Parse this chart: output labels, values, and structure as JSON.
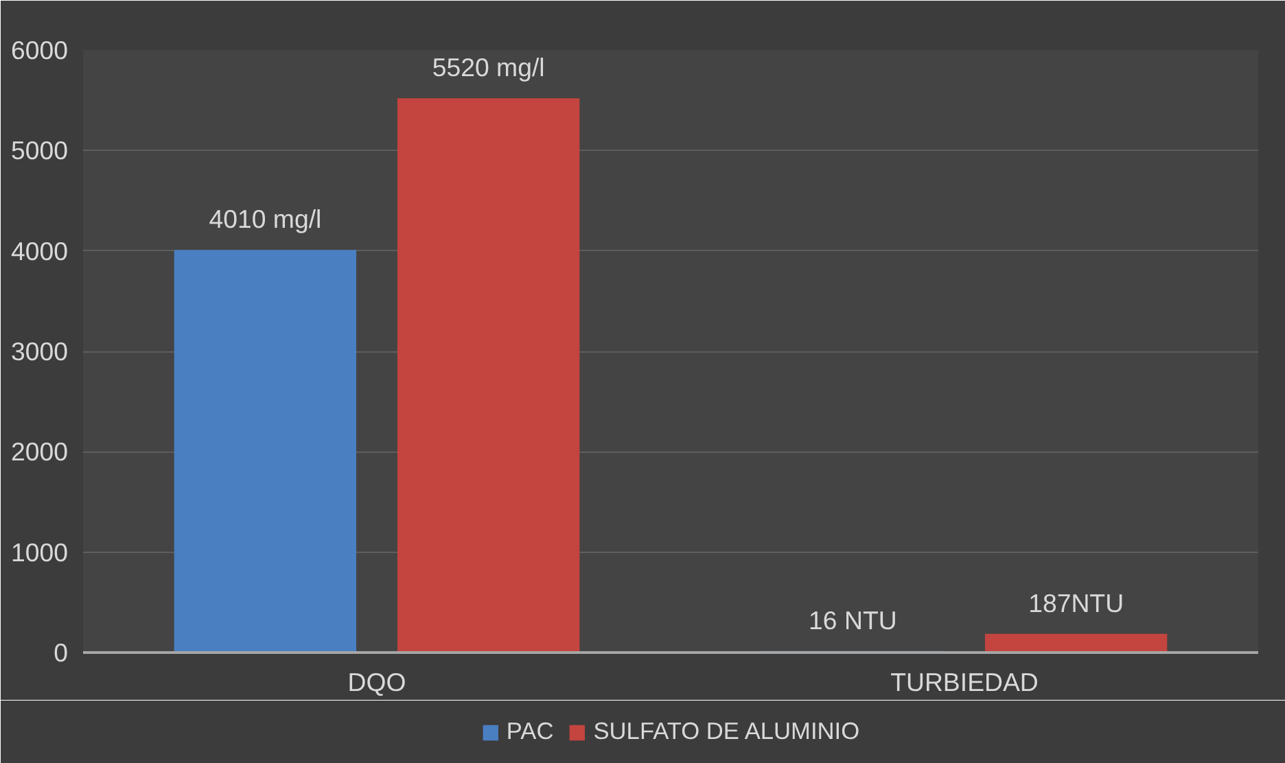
{
  "chart_data": {
    "type": "bar",
    "categories": [
      "DQO",
      "TURBIEDAD"
    ],
    "series": [
      {
        "name": "PAC",
        "color": "#4a7fc1",
        "values": [
          4010,
          16
        ],
        "value_labels": [
          "4010 mg/l",
          "16 NTU"
        ]
      },
      {
        "name": "SULFATO DE ALUMINIO",
        "color": "#c4443f",
        "values": [
          5520,
          187
        ],
        "value_labels": [
          "5520 mg/l",
          "187NTU"
        ]
      }
    ],
    "ylim": [
      0,
      6000
    ],
    "yticks": [
      0,
      1000,
      2000,
      3000,
      4000,
      5000,
      6000
    ],
    "grid": "y",
    "legend": "bottom"
  }
}
